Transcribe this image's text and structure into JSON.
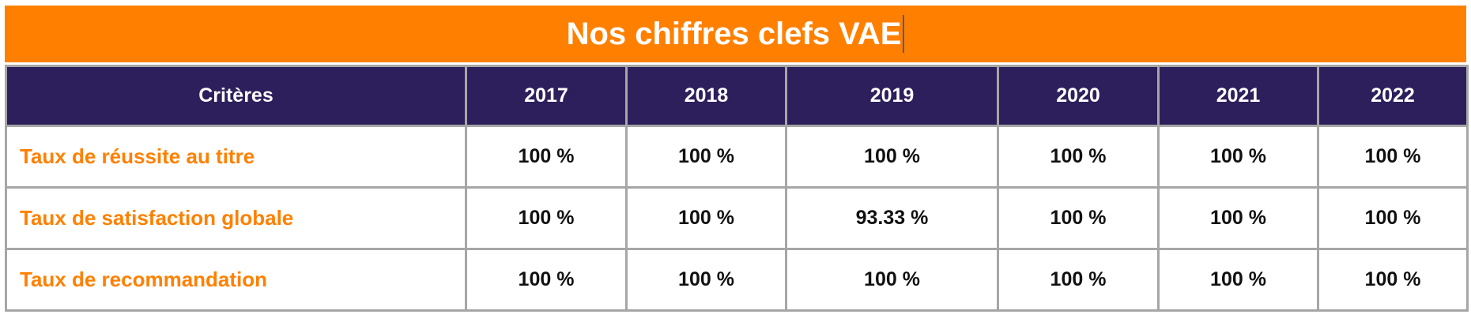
{
  "title": "Nos chiffres clefs VAE",
  "colors": {
    "accent": "#ff8000",
    "header_bg": "#2d1f5c",
    "border": "#a6a6a6"
  },
  "table": {
    "header": [
      "Critères",
      "2017",
      "2018",
      "2019",
      "2020",
      "2021",
      "2022"
    ],
    "rows": [
      {
        "label": "Taux de réussite au titre",
        "values": [
          "100 %",
          "100 %",
          "100 %",
          "100 %",
          "100 %",
          "100 %"
        ]
      },
      {
        "label": "Taux de satisfaction globale",
        "values": [
          "100 %",
          "100 %",
          "93.33 %",
          "100 %",
          "100 %",
          "100 %"
        ]
      },
      {
        "label": "Taux de recommandation",
        "values": [
          "100 %",
          "100 %",
          "100 %",
          "100 %",
          "100 %",
          "100 %"
        ]
      }
    ]
  }
}
